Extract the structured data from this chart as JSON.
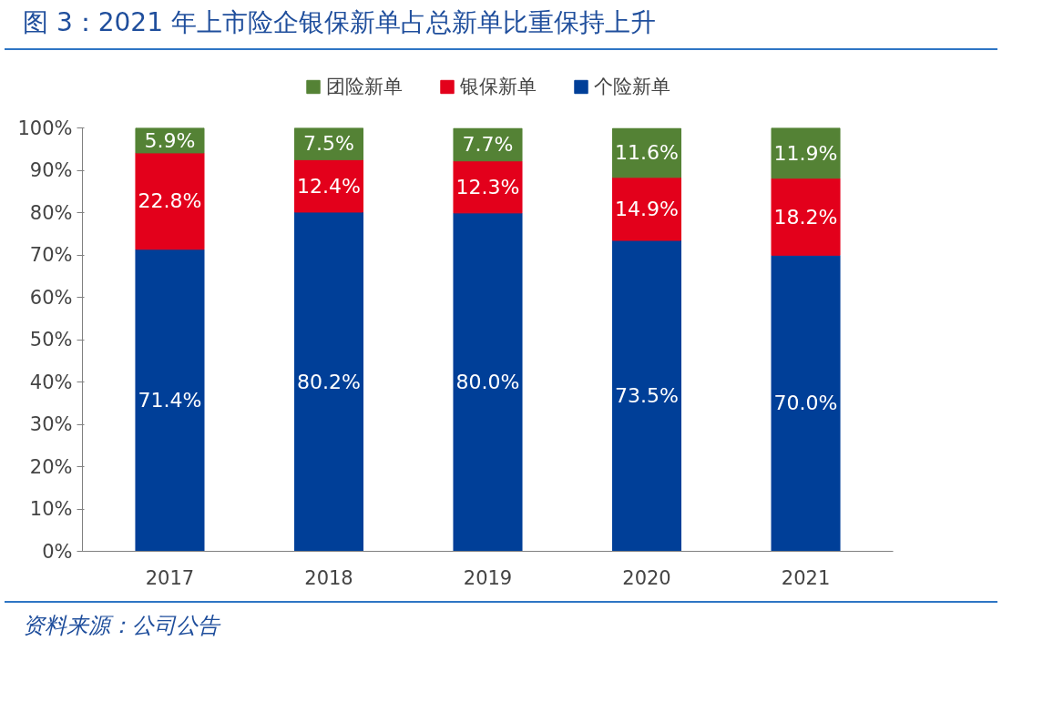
{
  "chart_data": {
    "type": "bar",
    "stacked": true,
    "title": "图 3：2021 年上市险企银保新单占总新单比重保持上升",
    "categories": [
      "2017",
      "2018",
      "2019",
      "2020",
      "2021"
    ],
    "series": [
      {
        "name": "个险新单",
        "color": "#003f98",
        "values": [
          71.4,
          80.2,
          80.0,
          73.5,
          70.0
        ],
        "value_labels": [
          "71.4%",
          "80.2%",
          "80.0%",
          "73.5%",
          "70.0%"
        ]
      },
      {
        "name": "银保新单",
        "color": "#e3001b",
        "values": [
          22.8,
          12.4,
          12.3,
          14.9,
          18.2
        ],
        "value_labels": [
          "22.8%",
          "12.4%",
          "12.3%",
          "14.9%",
          "18.2%"
        ]
      },
      {
        "name": "团险新单",
        "color": "#548235",
        "values": [
          5.9,
          7.5,
          7.7,
          11.6,
          11.9
        ],
        "value_labels": [
          "5.9%",
          "7.5%",
          "7.7%",
          "11.6%",
          "11.9%"
        ]
      }
    ],
    "ylim": [
      0,
      100.1
    ],
    "yticks": [
      {
        "value": 0,
        "label": "0%"
      },
      {
        "value": 10,
        "label": "10%"
      },
      {
        "value": 20,
        "label": "20%"
      },
      {
        "value": 30,
        "label": "30%"
      },
      {
        "value": 40,
        "label": "40%"
      },
      {
        "value": 50,
        "label": "50%"
      },
      {
        "value": 60,
        "label": "60%"
      },
      {
        "value": 70,
        "label": "70%"
      },
      {
        "value": 80,
        "label": "80%"
      },
      {
        "value": 90,
        "label": "90%"
      },
      {
        "value": 100,
        "label": "100%"
      }
    ],
    "grid": false,
    "legend": "top",
    "annotations": [
      "资料来源：公司公告"
    ]
  }
}
